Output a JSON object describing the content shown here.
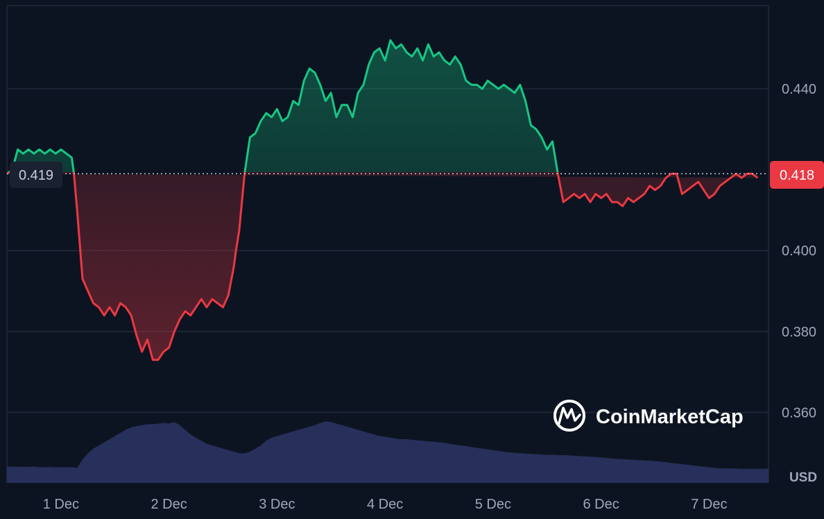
{
  "chart_data": {
    "type": "area",
    "watermark": "CoinMarketCap",
    "currency": "USD",
    "colors": {
      "background": "#0d1421",
      "grid": "#222a3a",
      "up": "#16c784",
      "down": "#ea3943",
      "volume": "#27305a",
      "axis_text": "#a1a7bb",
      "reference_line": "#c8ccd6"
    },
    "reference_price": 0.419,
    "reference_label": "0.419",
    "current_price_label": "0.418",
    "y_ticks": [
      "0.440",
      "0.400",
      "0.380",
      "0.360"
    ],
    "y_tick_values": [
      0.44,
      0.4,
      0.38,
      0.36
    ],
    "ylim": [
      0.343,
      0.463
    ],
    "x_ticks": [
      "1 Dec",
      "2 Dec",
      "3 Dec",
      "4 Dec",
      "5 Dec",
      "6 Dec",
      "7 Dec"
    ],
    "xlim": [
      0,
      7.05
    ],
    "x_tick_positions": [
      0.5,
      1.5,
      2.5,
      3.5,
      4.5,
      5.5,
      6.5
    ],
    "price_x": [
      0,
      0.05,
      0.1,
      0.15,
      0.2,
      0.25,
      0.3,
      0.35,
      0.4,
      0.45,
      0.5,
      0.55,
      0.6,
      0.62,
      0.65,
      0.7,
      0.75,
      0.8,
      0.85,
      0.9,
      0.95,
      1.0,
      1.05,
      1.1,
      1.15,
      1.2,
      1.25,
      1.3,
      1.35,
      1.4,
      1.45,
      1.5,
      1.55,
      1.6,
      1.65,
      1.7,
      1.75,
      1.8,
      1.85,
      1.9,
      1.95,
      2.0,
      2.05,
      2.1,
      2.12,
      2.15,
      2.2,
      2.25,
      2.3,
      2.35,
      2.4,
      2.45,
      2.5,
      2.55,
      2.6,
      2.65,
      2.7,
      2.75,
      2.8,
      2.85,
      2.9,
      2.95,
      3.0,
      3.05,
      3.1,
      3.15,
      3.2,
      3.25,
      3.3,
      3.35,
      3.4,
      3.45,
      3.5,
      3.55,
      3.6,
      3.65,
      3.7,
      3.75,
      3.8,
      3.85,
      3.9,
      3.95,
      4.0,
      4.05,
      4.1,
      4.15,
      4.2,
      4.25,
      4.3,
      4.35,
      4.4,
      4.45,
      4.5,
      4.55,
      4.6,
      4.65,
      4.7,
      4.75,
      4.8,
      4.85,
      4.9,
      4.95,
      5.0,
      5.05,
      5.1,
      5.15,
      5.2,
      5.25,
      5.3,
      5.35,
      5.4,
      5.45,
      5.5,
      5.55,
      5.6,
      5.65,
      5.7,
      5.75,
      5.8,
      5.85,
      5.9,
      5.95,
      6.0,
      6.05,
      6.1,
      6.15,
      6.2,
      6.25,
      6.3,
      6.35,
      6.4,
      6.45,
      6.5,
      6.55,
      6.6,
      6.65,
      6.7,
      6.75,
      6.8,
      6.85,
      6.9,
      6.95,
      7.0,
      7.05
    ],
    "price_y": [
      0.419,
      0.42,
      0.425,
      0.424,
      0.425,
      0.424,
      0.425,
      0.424,
      0.425,
      0.424,
      0.425,
      0.424,
      0.423,
      0.419,
      0.41,
      0.393,
      0.39,
      0.387,
      0.386,
      0.384,
      0.386,
      0.384,
      0.387,
      0.386,
      0.384,
      0.379,
      0.375,
      0.378,
      0.373,
      0.373,
      0.375,
      0.376,
      0.38,
      0.383,
      0.385,
      0.384,
      0.386,
      0.388,
      0.386,
      0.388,
      0.387,
      0.386,
      0.389,
      0.396,
      0.4,
      0.405,
      0.419,
      0.428,
      0.429,
      0.432,
      0.434,
      0.433,
      0.435,
      0.432,
      0.433,
      0.437,
      0.436,
      0.442,
      0.445,
      0.444,
      0.441,
      0.437,
      0.439,
      0.433,
      0.436,
      0.436,
      0.433,
      0.439,
      0.441,
      0.446,
      0.449,
      0.45,
      0.447,
      0.452,
      0.45,
      0.451,
      0.449,
      0.448,
      0.45,
      0.447,
      0.451,
      0.448,
      0.449,
      0.447,
      0.446,
      0.448,
      0.446,
      0.442,
      0.441,
      0.441,
      0.44,
      0.442,
      0.441,
      0.44,
      0.441,
      0.44,
      0.439,
      0.441,
      0.437,
      0.431,
      0.43,
      0.428,
      0.425,
      0.427,
      0.419,
      0.412,
      0.413,
      0.414,
      0.413,
      0.414,
      0.412,
      0.414,
      0.413,
      0.414,
      0.412,
      0.412,
      0.411,
      0.413,
      0.412,
      0.413,
      0.414,
      0.416,
      0.415,
      0.416,
      0.418,
      0.419,
      0.419,
      0.414,
      0.415,
      0.416,
      0.417,
      0.415,
      0.413,
      0.414,
      0.416,
      0.417,
      0.418,
      0.419,
      0.418,
      0.419,
      0.419,
      0.418
    ],
    "volume_levels": [
      0.52,
      0.52,
      0.52,
      0.51,
      0.51,
      0.52,
      0.5,
      0.5,
      0.51,
      0.5,
      0.5,
      0.5,
      0.5,
      0.48,
      0.75,
      0.95,
      1.1,
      1.2,
      1.3,
      1.4,
      1.5,
      1.6,
      1.7,
      1.78,
      1.82,
      1.85,
      1.88,
      1.88,
      1.9,
      1.92,
      1.9,
      1.95,
      1.85,
      1.7,
      1.55,
      1.45,
      1.35,
      1.25,
      1.2,
      1.15,
      1.1,
      1.05,
      1.0,
      0.95,
      0.95,
      1.0,
      1.1,
      1.2,
      1.35,
      1.45,
      1.5,
      1.55,
      1.6,
      1.65,
      1.7,
      1.75,
      1.8,
      1.85,
      1.92,
      1.97,
      1.95,
      1.9,
      1.85,
      1.8,
      1.75,
      1.7,
      1.65,
      1.6,
      1.55,
      1.5,
      1.48,
      1.45,
      1.42,
      1.4,
      1.4,
      1.38,
      1.36,
      1.35,
      1.33,
      1.32,
      1.3,
      1.28,
      1.25,
      1.22,
      1.2,
      1.18,
      1.15,
      1.12,
      1.1,
      1.08,
      1.05,
      1.03,
      1.0,
      0.98,
      0.96,
      0.95,
      0.94,
      0.93,
      0.92,
      0.91,
      0.9,
      0.9,
      0.89,
      0.89,
      0.88,
      0.87,
      0.86,
      0.85,
      0.84,
      0.83,
      0.82,
      0.8,
      0.78,
      0.77,
      0.76,
      0.75,
      0.74,
      0.73,
      0.72,
      0.71,
      0.7,
      0.68,
      0.66,
      0.64,
      0.62,
      0.6,
      0.58,
      0.56,
      0.54,
      0.52,
      0.5,
      0.48,
      0.47,
      0.46,
      0.46,
      0.46,
      0.45,
      0.45,
      0.45,
      0.45,
      0.45,
      0.46
    ]
  }
}
